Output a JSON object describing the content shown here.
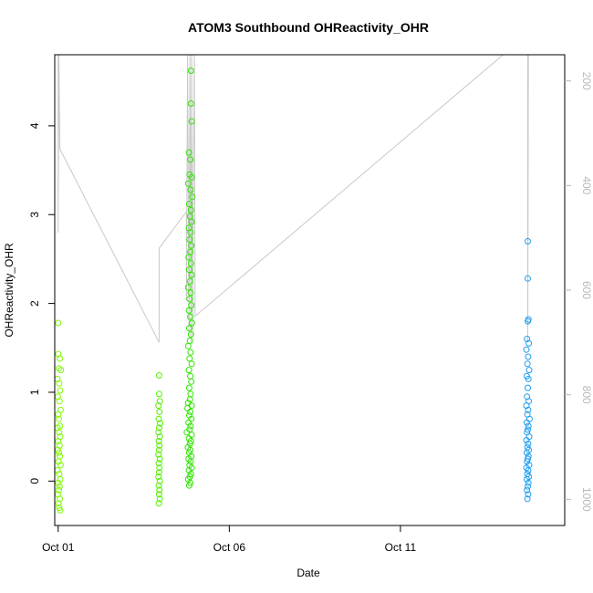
{
  "chart_data": {
    "type": "scatter",
    "title": "ATOM3 Southbound OHReactivity_OHR",
    "xlabel": "Date",
    "ylabel": "OHReactivity_OHR",
    "x_ticks": [
      "Oct 01",
      "Oct 06",
      "Oct 11"
    ],
    "x_tick_days": [
      1,
      6,
      11
    ],
    "xlim_days": [
      0.9,
      15.8
    ],
    "y_ticks": [
      0,
      1,
      2,
      3,
      4
    ],
    "ylim": [
      -0.5,
      4.8
    ],
    "right_axis": {
      "ticks": [
        200,
        400,
        600,
        800,
        1000
      ],
      "lim": [
        1050,
        150
      ],
      "color": "#b8b8b8",
      "note": "secondary pressure axis (reversed)"
    },
    "grid": false,
    "legend": "none",
    "series": [
      {
        "color": "#7cfc00",
        "points": [
          [
            1.0,
            1.78
          ],
          [
            1.0,
            1.43
          ],
          [
            1.05,
            1.38
          ],
          [
            1.02,
            1.27
          ],
          [
            1.08,
            1.25
          ],
          [
            0.98,
            1.15
          ],
          [
            1.03,
            1.1
          ],
          [
            1.06,
            1.02
          ],
          [
            0.99,
            0.95
          ],
          [
            1.04,
            0.9
          ],
          [
            1.07,
            0.8
          ],
          [
            1.0,
            0.75
          ],
          [
            1.02,
            0.7
          ],
          [
            1.05,
            0.62
          ],
          [
            0.98,
            0.6
          ],
          [
            1.03,
            0.55
          ],
          [
            1.06,
            0.5
          ],
          [
            1.0,
            0.45
          ],
          [
            1.04,
            0.4
          ],
          [
            0.99,
            0.35
          ],
          [
            1.02,
            0.32
          ],
          [
            1.05,
            0.28
          ],
          [
            1.01,
            0.22
          ],
          [
            1.07,
            0.18
          ],
          [
            0.98,
            0.12
          ],
          [
            1.03,
            0.08
          ],
          [
            1.06,
            0.02
          ],
          [
            1.0,
            -0.02
          ],
          [
            1.04,
            -0.06
          ],
          [
            1.02,
            -0.1
          ],
          [
            0.99,
            -0.15
          ],
          [
            1.05,
            -0.2
          ],
          [
            1.01,
            -0.25
          ],
          [
            1.03,
            -0.3
          ],
          [
            1.06,
            -0.33
          ]
        ]
      },
      {
        "color": "#55f000",
        "points": [
          [
            3.95,
            1.19
          ],
          [
            3.95,
            0.98
          ],
          [
            3.97,
            0.9
          ],
          [
            3.93,
            0.85
          ],
          [
            3.96,
            0.78
          ],
          [
            3.94,
            0.7
          ],
          [
            3.98,
            0.65
          ],
          [
            3.95,
            0.6
          ],
          [
            3.93,
            0.55
          ],
          [
            3.97,
            0.5
          ],
          [
            3.94,
            0.45
          ],
          [
            3.96,
            0.4
          ],
          [
            3.95,
            0.35
          ],
          [
            3.93,
            0.3
          ],
          [
            3.97,
            0.25
          ],
          [
            3.94,
            0.2
          ],
          [
            3.96,
            0.15
          ],
          [
            3.95,
            0.1
          ],
          [
            3.93,
            0.05
          ],
          [
            3.97,
            0.0
          ],
          [
            3.94,
            -0.05
          ],
          [
            3.96,
            -0.1
          ],
          [
            3.95,
            -0.15
          ],
          [
            3.97,
            -0.2
          ],
          [
            3.94,
            -0.25
          ]
        ]
      },
      {
        "color": "#2ee600",
        "points": [
          [
            4.88,
            4.62
          ],
          [
            4.88,
            4.25
          ],
          [
            4.9,
            4.05
          ],
          [
            4.82,
            3.7
          ],
          [
            4.86,
            3.62
          ],
          [
            4.84,
            3.45
          ],
          [
            4.9,
            3.42
          ],
          [
            4.8,
            3.35
          ],
          [
            4.87,
            3.28
          ],
          [
            4.92,
            3.2
          ],
          [
            4.83,
            3.12
          ],
          [
            4.88,
            3.05
          ],
          [
            4.85,
            2.98
          ],
          [
            4.9,
            2.92
          ],
          [
            4.82,
            2.85
          ],
          [
            4.87,
            2.8
          ],
          [
            4.84,
            2.72
          ],
          [
            4.89,
            2.65
          ],
          [
            4.86,
            2.58
          ],
          [
            4.81,
            2.52
          ],
          [
            4.88,
            2.45
          ],
          [
            4.83,
            2.38
          ],
          [
            4.9,
            2.32
          ],
          [
            4.85,
            2.25
          ],
          [
            4.8,
            2.18
          ],
          [
            4.87,
            2.12
          ],
          [
            4.84,
            2.05
          ],
          [
            4.89,
            1.98
          ],
          [
            4.82,
            1.92
          ],
          [
            4.86,
            1.85
          ],
          [
            4.91,
            1.78
          ],
          [
            4.83,
            1.72
          ],
          [
            4.88,
            1.65
          ],
          [
            4.85,
            1.58
          ],
          [
            4.8,
            1.52
          ],
          [
            4.87,
            1.45
          ],
          [
            4.84,
            1.38
          ],
          [
            4.9,
            1.32
          ],
          [
            4.82,
            1.25
          ],
          [
            4.86,
            1.18
          ],
          [
            4.89,
            1.12
          ],
          [
            4.83,
            1.05
          ],
          [
            4.87,
            0.98
          ],
          [
            4.85,
            0.92
          ],
          [
            4.8,
            0.88
          ],
          [
            4.9,
            0.85
          ],
          [
            4.78,
            0.82
          ],
          [
            4.86,
            0.78
          ],
          [
            4.83,
            0.74
          ],
          [
            4.89,
            0.7
          ],
          [
            4.81,
            0.66
          ],
          [
            4.87,
            0.62
          ],
          [
            4.84,
            0.58
          ],
          [
            4.76,
            0.55
          ],
          [
            4.9,
            0.52
          ],
          [
            4.82,
            0.48
          ],
          [
            4.88,
            0.45
          ],
          [
            4.85,
            0.42
          ],
          [
            4.79,
            0.38
          ],
          [
            4.86,
            0.35
          ],
          [
            4.83,
            0.32
          ],
          [
            4.89,
            0.28
          ],
          [
            4.81,
            0.25
          ],
          [
            4.87,
            0.22
          ],
          [
            4.84,
            0.18
          ],
          [
            4.9,
            0.15
          ],
          [
            4.82,
            0.12
          ],
          [
            4.88,
            0.08
          ],
          [
            4.85,
            0.05
          ],
          [
            4.8,
            0.02
          ],
          [
            4.86,
            -0.02
          ],
          [
            4.83,
            -0.05
          ]
        ]
      },
      {
        "color": "#1e9ff0",
        "points": [
          [
            14.72,
            2.7
          ],
          [
            14.72,
            2.28
          ],
          [
            14.74,
            1.82
          ],
          [
            14.72,
            1.8
          ],
          [
            14.7,
            1.6
          ],
          [
            14.75,
            1.55
          ],
          [
            14.68,
            1.48
          ],
          [
            14.73,
            1.4
          ],
          [
            14.71,
            1.32
          ],
          [
            14.76,
            1.25
          ],
          [
            14.69,
            1.18
          ],
          [
            14.74,
            1.15
          ],
          [
            14.72,
            1.05
          ],
          [
            14.7,
            0.95
          ],
          [
            14.75,
            0.9
          ],
          [
            14.68,
            0.85
          ],
          [
            14.73,
            0.8
          ],
          [
            14.71,
            0.75
          ],
          [
            14.77,
            0.7
          ],
          [
            14.69,
            0.66
          ],
          [
            14.74,
            0.62
          ],
          [
            14.72,
            0.58
          ],
          [
            14.7,
            0.55
          ],
          [
            14.76,
            0.5
          ],
          [
            14.68,
            0.46
          ],
          [
            14.73,
            0.42
          ],
          [
            14.71,
            0.38
          ],
          [
            14.75,
            0.35
          ],
          [
            14.69,
            0.32
          ],
          [
            14.74,
            0.28
          ],
          [
            14.72,
            0.25
          ],
          [
            14.7,
            0.22
          ],
          [
            14.76,
            0.18
          ],
          [
            14.68,
            0.15
          ],
          [
            14.73,
            0.12
          ],
          [
            14.71,
            0.08
          ],
          [
            14.75,
            0.05
          ],
          [
            14.69,
            0.02
          ],
          [
            14.74,
            -0.02
          ],
          [
            14.72,
            -0.06
          ],
          [
            14.7,
            -0.1
          ],
          [
            14.73,
            -0.15
          ],
          [
            14.71,
            -0.2
          ]
        ]
      }
    ],
    "overlay_line": {
      "color": "#c8c8c8",
      "description": "pressure trace on right axis",
      "points": [
        [
          1.0,
          150
        ],
        [
          1.0,
          490
        ],
        [
          1.02,
          150
        ],
        [
          1.05,
          330
        ],
        [
          3.95,
          700
        ],
        [
          3.95,
          520
        ],
        [
          4.75,
          450
        ],
        [
          4.75,
          620
        ],
        [
          4.78,
          150
        ],
        [
          4.82,
          680
        ],
        [
          4.85,
          150
        ],
        [
          4.88,
          700
        ],
        [
          4.9,
          150
        ],
        [
          4.93,
          690
        ],
        [
          4.95,
          400
        ],
        [
          4.98,
          150
        ],
        [
          5.0,
          620
        ],
        [
          5.0,
          650
        ],
        [
          14.0,
          150
        ],
        [
          14.72,
          150
        ],
        [
          14.72,
          700
        ],
        [
          14.74,
          150
        ]
      ]
    }
  }
}
